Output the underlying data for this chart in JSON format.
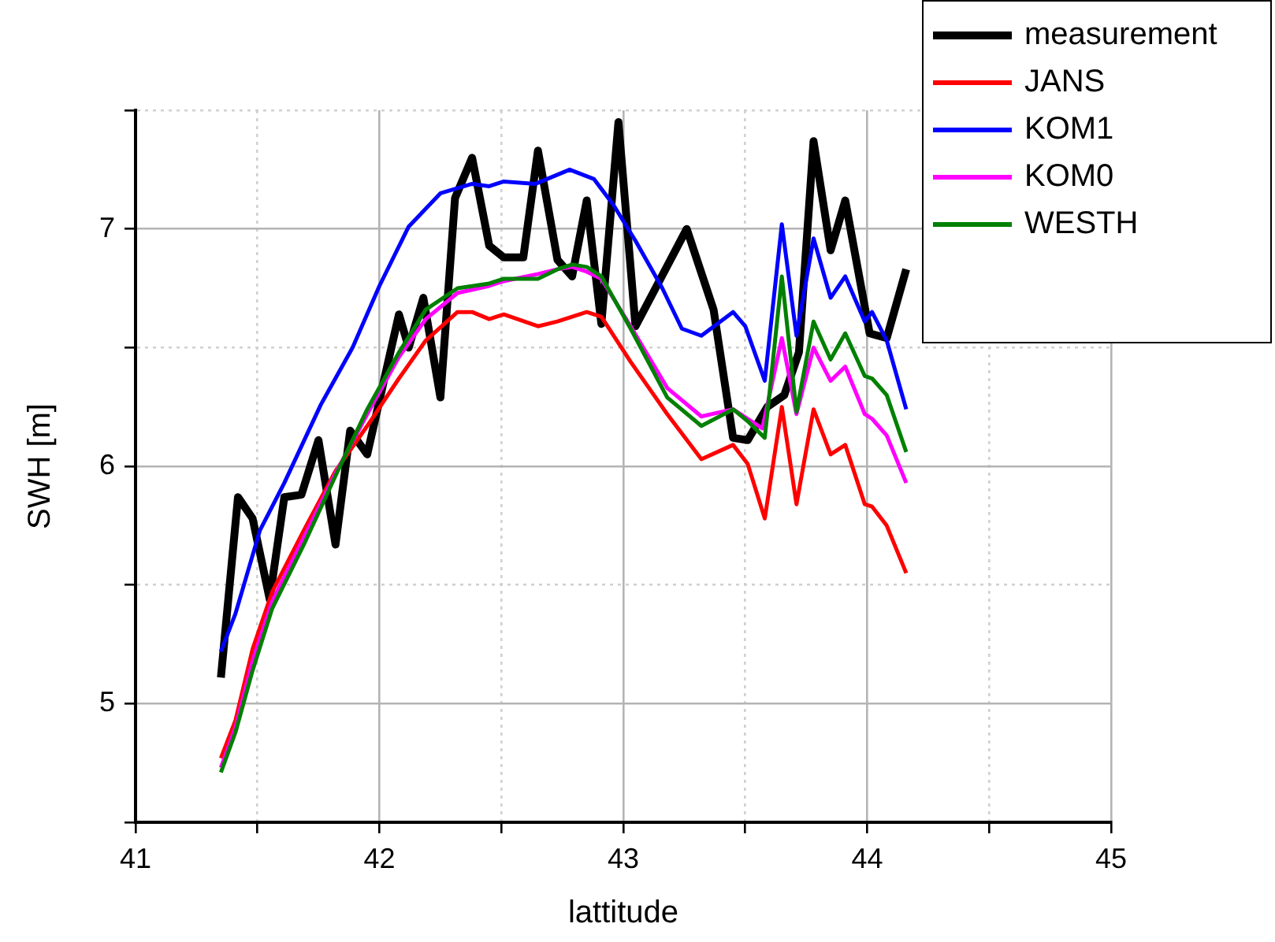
{
  "chart_data": {
    "type": "line",
    "xlabel": "lattitude",
    "ylabel": "SWH [m]",
    "xlim": [
      41,
      45
    ],
    "ylim": [
      4.5,
      7.5
    ],
    "xticks": [
      41,
      {
        "value": 41.5,
        "label": null
      },
      42,
      {
        "value": 42.5,
        "label": null
      },
      43,
      {
        "value": 43.5,
        "label": null
      },
      44,
      {
        "value": 44.5,
        "label": null
      },
      45
    ],
    "yticks": [
      {
        "value": 4.5,
        "label": null
      },
      5,
      {
        "value": 5.5,
        "label": null
      },
      6,
      {
        "value": 6.5,
        "label": null
      },
      7,
      {
        "value": 7.5,
        "label": null
      }
    ],
    "grid": true,
    "legend": "top right",
    "marker": "none",
    "line_style": "solid",
    "series": [
      {
        "name": "measurement",
        "color": "#000000",
        "x": [
          41.35,
          41.42,
          41.48,
          41.55,
          41.61,
          41.68,
          41.75,
          41.82,
          41.88,
          41.95,
          42.08,
          42.12,
          42.18,
          42.25,
          42.31,
          42.38,
          42.45,
          42.51,
          42.59,
          42.65,
          42.73,
          42.79,
          42.85,
          42.91,
          42.98,
          43.05,
          43.26,
          43.37,
          43.45,
          43.51,
          43.59,
          43.66,
          43.72,
          43.78,
          43.85,
          43.91,
          44.01,
          44.08,
          44.16
        ],
        "values": [
          5.11,
          5.87,
          5.78,
          5.44,
          5.87,
          5.88,
          6.11,
          5.67,
          6.15,
          6.05,
          6.64,
          6.5,
          6.71,
          6.29,
          7.13,
          7.3,
          6.93,
          6.88,
          6.88,
          7.33,
          6.87,
          6.8,
          7.12,
          6.6,
          7.45,
          6.59,
          7.0,
          6.66,
          6.12,
          6.11,
          6.25,
          6.3,
          6.48,
          7.37,
          6.91,
          7.12,
          6.56,
          6.54,
          6.83
        ]
      },
      {
        "name": "JANS",
        "color": "#ff0000",
        "x": [
          41.35,
          41.41,
          41.48,
          41.56,
          41.69,
          41.82,
          41.95,
          42.08,
          42.19,
          42.32,
          42.38,
          42.45,
          42.51,
          42.65,
          42.73,
          42.85,
          42.91,
          43.03,
          43.18,
          43.32,
          43.45,
          43.51,
          43.58,
          43.65,
          43.71,
          43.78,
          43.85,
          43.91,
          43.99,
          44.02,
          44.08,
          44.16
        ],
        "values": [
          4.77,
          4.93,
          5.23,
          5.47,
          5.73,
          5.98,
          6.17,
          6.37,
          6.53,
          6.65,
          6.65,
          6.62,
          6.64,
          6.59,
          6.61,
          6.65,
          6.63,
          6.44,
          6.22,
          6.03,
          6.09,
          6.01,
          5.78,
          6.25,
          5.84,
          6.24,
          6.05,
          6.09,
          5.84,
          5.83,
          5.75,
          5.55
        ]
      },
      {
        "name": "KOM1",
        "color": "#0000ff",
        "x": [
          41.35,
          41.41,
          41.51,
          41.61,
          41.76,
          41.89,
          42.0,
          42.12,
          42.25,
          42.38,
          42.45,
          42.51,
          42.64,
          42.78,
          42.88,
          42.96,
          43.05,
          43.16,
          43.24,
          43.32,
          43.45,
          43.5,
          43.58,
          43.65,
          43.71,
          43.78,
          43.85,
          43.91,
          43.99,
          44.02,
          44.08,
          44.16
        ],
        "values": [
          5.22,
          5.38,
          5.73,
          5.93,
          6.26,
          6.5,
          6.76,
          7.01,
          7.15,
          7.19,
          7.18,
          7.2,
          7.19,
          7.25,
          7.21,
          7.1,
          6.95,
          6.75,
          6.58,
          6.55,
          6.65,
          6.59,
          6.36,
          7.02,
          6.55,
          6.96,
          6.71,
          6.8,
          6.61,
          6.65,
          6.53,
          6.24
        ]
      },
      {
        "name": "KOM0",
        "color": "#ff00ff",
        "x": [
          41.35,
          41.41,
          41.48,
          41.56,
          41.69,
          41.82,
          41.95,
          42.08,
          42.19,
          42.32,
          42.45,
          42.51,
          42.65,
          42.73,
          42.79,
          42.85,
          42.91,
          43.03,
          43.18,
          43.32,
          43.45,
          43.51,
          43.57,
          43.65,
          43.71,
          43.78,
          43.85,
          43.91,
          43.99,
          44.02,
          44.08,
          44.16
        ],
        "values": [
          4.73,
          4.9,
          5.18,
          5.43,
          5.7,
          5.97,
          6.22,
          6.46,
          6.62,
          6.73,
          6.76,
          6.78,
          6.81,
          6.83,
          6.84,
          6.82,
          6.79,
          6.59,
          6.33,
          6.21,
          6.24,
          6.2,
          6.16,
          6.54,
          6.22,
          6.5,
          6.36,
          6.42,
          6.22,
          6.2,
          6.13,
          5.93
        ]
      },
      {
        "name": "WESTH",
        "color": "#008000",
        "x": [
          41.35,
          41.41,
          41.48,
          41.56,
          41.69,
          41.82,
          41.95,
          42.08,
          42.19,
          42.32,
          42.45,
          42.51,
          42.65,
          42.73,
          42.79,
          42.85,
          42.91,
          43.03,
          43.18,
          43.32,
          43.45,
          43.51,
          43.58,
          43.65,
          43.71,
          43.78,
          43.85,
          43.91,
          43.99,
          44.02,
          44.08,
          44.16
        ],
        "values": [
          4.71,
          4.88,
          5.14,
          5.4,
          5.67,
          5.96,
          6.24,
          6.48,
          6.66,
          6.75,
          6.77,
          6.79,
          6.79,
          6.83,
          6.85,
          6.84,
          6.8,
          6.58,
          6.29,
          6.17,
          6.24,
          6.19,
          6.12,
          6.8,
          6.23,
          6.61,
          6.45,
          6.56,
          6.38,
          6.37,
          6.3,
          6.06
        ]
      }
    ]
  }
}
